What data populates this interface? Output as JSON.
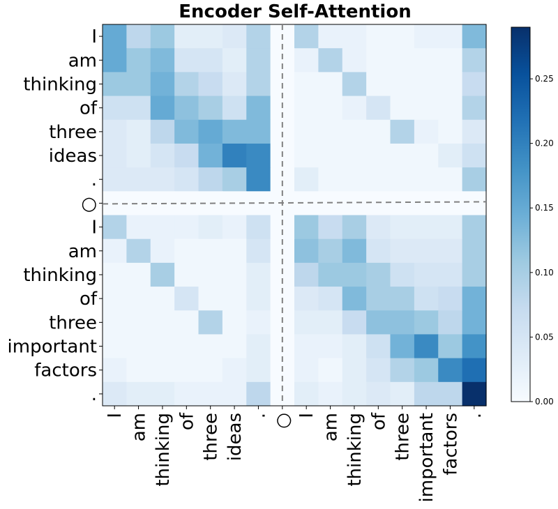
{
  "chart_data": {
    "type": "heatmap",
    "title": "Encoder Self-Attention",
    "row_labels": [
      "I",
      "am",
      "thinking",
      "of",
      "three",
      "ideas",
      ".",
      "○",
      "I",
      "am",
      "thinking",
      "of",
      "three",
      "important",
      "factors",
      "."
    ],
    "col_labels": [
      "I",
      "am",
      "thinking",
      "of",
      "three",
      "ideas",
      ".",
      "○",
      "I",
      "am",
      "thinking",
      "of",
      "three",
      "important",
      "factors",
      "."
    ],
    "separator_label": "○",
    "separator_index": 7,
    "colormap": "Blues",
    "vmin": 0.0,
    "vmax": 0.29,
    "colorbar_ticks": [
      "0.00",
      "0.05",
      "0.10",
      "0.15",
      "0.20",
      "0.25"
    ],
    "colorbar_tick_values": [
      0.0,
      0.05,
      0.1,
      0.15,
      0.2,
      0.25
    ],
    "values": [
      [
        0.15,
        0.08,
        0.11,
        0.03,
        0.03,
        0.04,
        0.09,
        0.0,
        0.09,
        0.02,
        0.02,
        0.01,
        0.01,
        0.02,
        0.02,
        0.13
      ],
      [
        0.15,
        0.11,
        0.13,
        0.05,
        0.05,
        0.03,
        0.09,
        0.0,
        0.02,
        0.09,
        0.02,
        0.01,
        0.01,
        0.01,
        0.01,
        0.09
      ],
      [
        0.11,
        0.11,
        0.14,
        0.09,
        0.07,
        0.04,
        0.09,
        0.0,
        0.01,
        0.01,
        0.09,
        0.01,
        0.01,
        0.01,
        0.01,
        0.07
      ],
      [
        0.06,
        0.06,
        0.15,
        0.12,
        0.1,
        0.06,
        0.13,
        0.0,
        0.01,
        0.01,
        0.02,
        0.05,
        0.01,
        0.01,
        0.01,
        0.09
      ],
      [
        0.04,
        0.03,
        0.08,
        0.13,
        0.15,
        0.13,
        0.13,
        0.0,
        0.01,
        0.01,
        0.01,
        0.01,
        0.09,
        0.02,
        0.01,
        0.04
      ],
      [
        0.04,
        0.03,
        0.05,
        0.07,
        0.14,
        0.2,
        0.19,
        0.0,
        0.01,
        0.01,
        0.01,
        0.01,
        0.01,
        0.01,
        0.03,
        0.06
      ],
      [
        0.04,
        0.04,
        0.04,
        0.05,
        0.08,
        0.1,
        0.19,
        0.0,
        0.03,
        0.01,
        0.01,
        0.01,
        0.01,
        0.01,
        0.01,
        0.1
      ],
      [
        0.0,
        0.0,
        0.0,
        0.0,
        0.0,
        0.0,
        0.0,
        0.0,
        0.0,
        0.0,
        0.0,
        0.0,
        0.0,
        0.0,
        0.0,
        0.0
      ],
      [
        0.09,
        0.02,
        0.02,
        0.02,
        0.03,
        0.02,
        0.06,
        0.0,
        0.11,
        0.07,
        0.1,
        0.04,
        0.03,
        0.03,
        0.03,
        0.1
      ],
      [
        0.02,
        0.09,
        0.02,
        0.01,
        0.01,
        0.01,
        0.05,
        0.0,
        0.12,
        0.1,
        0.13,
        0.05,
        0.04,
        0.04,
        0.04,
        0.1
      ],
      [
        0.01,
        0.01,
        0.1,
        0.01,
        0.01,
        0.01,
        0.03,
        0.0,
        0.08,
        0.11,
        0.11,
        0.1,
        0.06,
        0.05,
        0.05,
        0.1
      ],
      [
        0.01,
        0.01,
        0.01,
        0.05,
        0.01,
        0.01,
        0.03,
        0.0,
        0.04,
        0.05,
        0.13,
        0.1,
        0.1,
        0.06,
        0.07,
        0.14
      ],
      [
        0.01,
        0.01,
        0.01,
        0.01,
        0.09,
        0.01,
        0.02,
        0.0,
        0.03,
        0.03,
        0.07,
        0.12,
        0.12,
        0.11,
        0.08,
        0.14
      ],
      [
        0.01,
        0.01,
        0.01,
        0.01,
        0.01,
        0.01,
        0.03,
        0.0,
        0.02,
        0.02,
        0.03,
        0.06,
        0.14,
        0.19,
        0.11,
        0.18
      ],
      [
        0.02,
        0.01,
        0.01,
        0.01,
        0.01,
        0.02,
        0.03,
        0.0,
        0.02,
        0.01,
        0.03,
        0.05,
        0.09,
        0.11,
        0.19,
        0.22
      ],
      [
        0.04,
        0.03,
        0.03,
        0.02,
        0.02,
        0.02,
        0.08,
        0.0,
        0.03,
        0.02,
        0.03,
        0.04,
        0.03,
        0.08,
        0.08,
        0.29
      ]
    ],
    "grid": false,
    "colorbar_position": "right"
  }
}
